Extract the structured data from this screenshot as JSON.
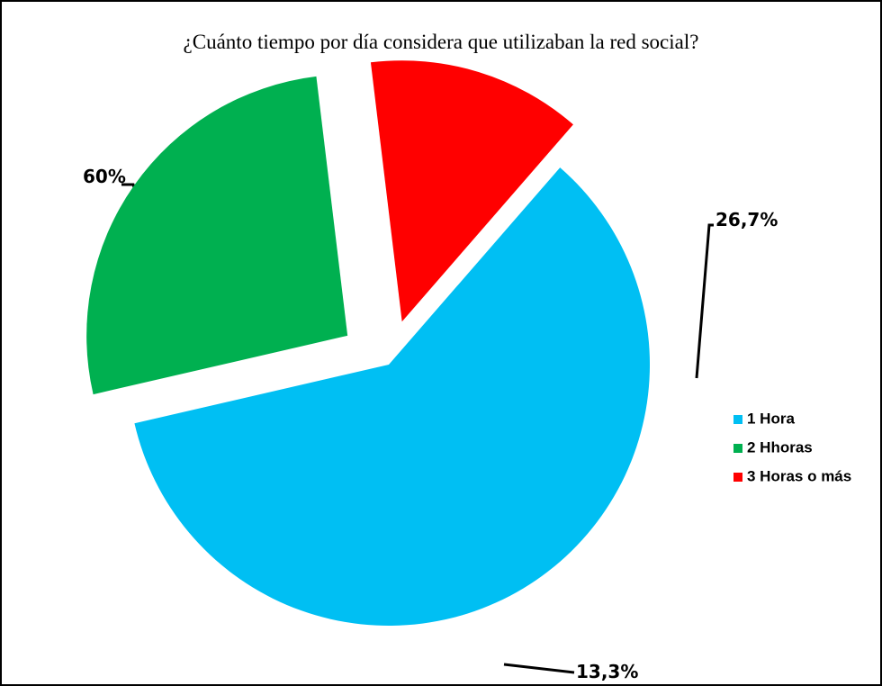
{
  "chart_data": {
    "type": "pie",
    "title": "¿Cuánto tiempo por día considera que utilizaban la red social?",
    "categories": [
      "1 Hora",
      "2 Hhoras",
      "3 Horas o más"
    ],
    "values": [
      60,
      26.7,
      13.3
    ],
    "value_labels": [
      "60%",
      "26,7%",
      "13,3%"
    ],
    "colors": [
      "#00bff3",
      "#00b050",
      "#ff0000"
    ],
    "legend": "right"
  }
}
